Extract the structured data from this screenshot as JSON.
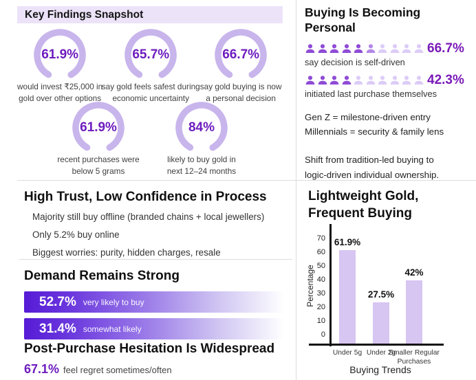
{
  "key_findings": {
    "header": "Key Findings Snapshot",
    "gauges": [
      {
        "value": "61.9%",
        "caption": "would invest ₹25,000 in\ngold over other options"
      },
      {
        "value": "65.7%",
        "caption": "say gold feels safest during\neconomic uncertainty"
      },
      {
        "value": "66.7%",
        "caption": "say gold buying is now\na personal decision"
      },
      {
        "value": "61.9%",
        "caption": "recent purchases were\nbelow 5 grams"
      },
      {
        "value": "84%",
        "caption": "likely to buy gold in\nnext 12–24 months"
      }
    ]
  },
  "buying_personal": {
    "title_line1": "Buying Is Becoming",
    "title_line2": "Personal",
    "rows": [
      {
        "value": "66.7%",
        "caption": "say decision is self-driven",
        "filled": 5,
        "partial": 1,
        "total": 10
      },
      {
        "value": "42.3%",
        "caption": "initiated last purchase themselves",
        "filled": 4,
        "partial": 0,
        "total": 10
      }
    ],
    "notes": [
      "Gen Z = milestone-driven entry",
      "Millennials = security & family lens"
    ],
    "shift_note": [
      "Shift from tradition-led buying to",
      "logic-driven individual ownership."
    ]
  },
  "high_trust": {
    "title": "High Trust, Low Confidence in Process",
    "points": [
      "Majority still buy offline (branded chains + local jewellers)",
      "Only 5.2% buy online",
      "Biggest worries: purity, hidden charges, resale"
    ]
  },
  "demand": {
    "title": "Demand Remains Strong",
    "bars": [
      {
        "value": "52.7%",
        "label": "very likely to buy"
      },
      {
        "value": "31.4%",
        "label": "somewhat likely"
      }
    ]
  },
  "post_purchase": {
    "title": "Post-Purchase Hesitation Is Widespread",
    "stat": "67.1%",
    "stat_label": "feel regret sometimes/often"
  },
  "chart_data": {
    "type": "bar",
    "title_line1": "Lightweight Gold,",
    "title_line2": "Frequent Buying",
    "categories": [
      "Under 5g",
      "Under 2g",
      "Smaller Regular\nPurchases"
    ],
    "values": [
      61.9,
      27.5,
      42
    ],
    "value_labels": [
      "61.9%",
      "27.5%",
      "42%"
    ],
    "xlabel": "Buying Trends",
    "ylabel": "Percentage",
    "yticks": [
      0,
      10,
      20,
      30,
      40,
      50,
      60,
      70
    ],
    "ylim": [
      0,
      75
    ],
    "legend": "none",
    "grid": "off",
    "bar_color": "#d7c5f2"
  },
  "colors": {
    "accent_purple": "#6d1cbe",
    "stat_purple": "#7a1ab8",
    "arc_purple": "#c8b5ec",
    "header_bg": "#ece3f9",
    "person_dark": "#8f4bd6",
    "person_partial": "#b388e8",
    "person_light": "#dcccf6",
    "bar_gradient_start": "#561bd6",
    "chart_bar": "#d7c5f2",
    "divider": "#dcdcdc"
  }
}
